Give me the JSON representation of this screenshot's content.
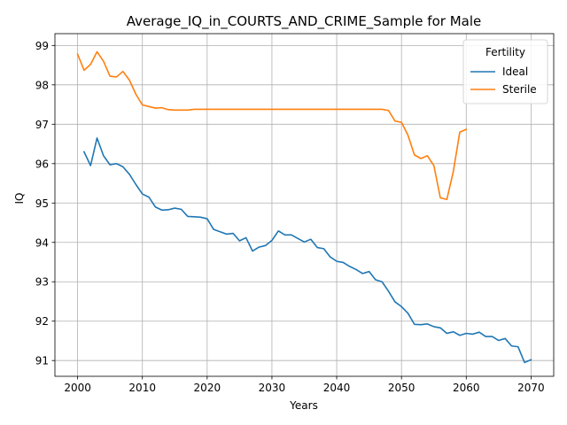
{
  "chart_data": {
    "type": "line",
    "title": "Average_IQ_in_COURTS_AND_CRIME_Sample for Male",
    "xlabel": "Years",
    "ylabel": "IQ",
    "xlim": [
      1996.5,
      2073.5
    ],
    "ylim": [
      90.6,
      99.3
    ],
    "xticks": [
      2000,
      2010,
      2020,
      2030,
      2040,
      2050,
      2060,
      2070
    ],
    "yticks": [
      91,
      92,
      93,
      94,
      95,
      96,
      97,
      98,
      99
    ],
    "grid": true,
    "legend": {
      "title": "Fertility",
      "position": "top-right"
    },
    "series": [
      {
        "name": "Ideal",
        "color": "#1f77b4",
        "x": [
          2001,
          2002,
          2003,
          2004,
          2005,
          2006,
          2007,
          2008,
          2009,
          2010,
          2011,
          2012,
          2013,
          2014,
          2015,
          2016,
          2017,
          2018,
          2019,
          2020,
          2021,
          2022,
          2023,
          2024,
          2025,
          2026,
          2027,
          2028,
          2029,
          2030,
          2031,
          2032,
          2033,
          2034,
          2035,
          2036,
          2037,
          2038,
          2039,
          2040,
          2041,
          2042,
          2043,
          2044,
          2045,
          2046,
          2047,
          2048,
          2049,
          2050,
          2051,
          2052,
          2053,
          2054,
          2055,
          2056,
          2057,
          2058,
          2059,
          2060,
          2061,
          2062,
          2063,
          2064,
          2065,
          2066,
          2067,
          2068,
          2069,
          2070
        ],
        "y": [
          96.3,
          95.95,
          96.65,
          96.2,
          95.97,
          96.0,
          95.92,
          95.73,
          95.47,
          95.23,
          95.15,
          94.9,
          94.82,
          94.83,
          94.87,
          94.84,
          94.66,
          94.65,
          94.64,
          94.6,
          94.33,
          94.27,
          94.21,
          94.23,
          94.04,
          94.12,
          93.78,
          93.88,
          93.92,
          94.05,
          94.29,
          94.19,
          94.19,
          94.1,
          94.01,
          94.08,
          93.87,
          93.84,
          93.63,
          93.52,
          93.49,
          93.39,
          93.31,
          93.21,
          93.26,
          93.05,
          93.0,
          92.76,
          92.49,
          92.37,
          92.2,
          91.92,
          91.91,
          91.93,
          91.86,
          91.83,
          91.69,
          91.73,
          91.64,
          91.69,
          91.67,
          91.72,
          91.61,
          91.61,
          91.51,
          91.56,
          91.37,
          91.35,
          90.95,
          91.02
        ]
      },
      {
        "name": "Sterile",
        "color": "#ff7f0e",
        "x": [
          2000,
          2001,
          2002,
          2003,
          2004,
          2005,
          2006,
          2007,
          2008,
          2009,
          2010,
          2011,
          2012,
          2013,
          2014,
          2015,
          2016,
          2017,
          2018,
          2019,
          2020,
          2021,
          2022,
          2023,
          2024,
          2025,
          2026,
          2027,
          2028,
          2029,
          2030,
          2031,
          2032,
          2033,
          2034,
          2035,
          2036,
          2037,
          2038,
          2039,
          2040,
          2041,
          2042,
          2043,
          2044,
          2045,
          2046,
          2047,
          2048,
          2049,
          2050,
          2051,
          2052,
          2053,
          2054,
          2055,
          2056,
          2057,
          2058,
          2059,
          2060
        ],
        "y": [
          98.78,
          98.37,
          98.52,
          98.84,
          98.6,
          98.22,
          98.2,
          98.34,
          98.12,
          97.76,
          97.49,
          97.45,
          97.41,
          97.42,
          97.37,
          97.36,
          97.36,
          97.36,
          97.38,
          97.38,
          97.38,
          97.38,
          97.38,
          97.38,
          97.38,
          97.38,
          97.38,
          97.38,
          97.38,
          97.38,
          97.38,
          97.38,
          97.38,
          97.38,
          97.38,
          97.38,
          97.38,
          97.38,
          97.38,
          97.38,
          97.38,
          97.38,
          97.38,
          97.38,
          97.38,
          97.38,
          97.38,
          97.38,
          97.35,
          97.08,
          97.05,
          96.72,
          96.22,
          96.13,
          96.2,
          95.95,
          95.13,
          95.09,
          95.8,
          96.8,
          96.87
        ]
      }
    ]
  }
}
